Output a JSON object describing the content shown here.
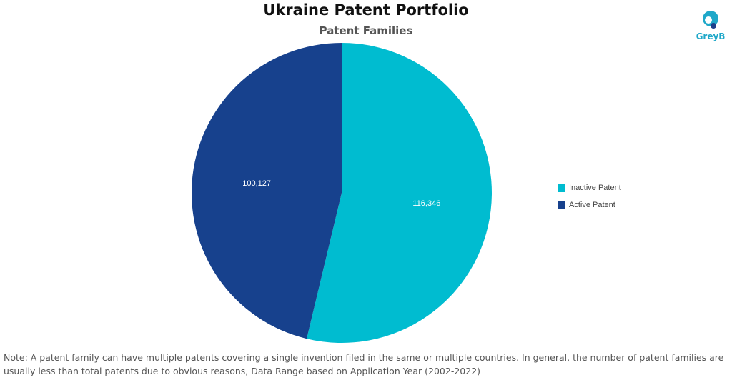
{
  "chart_data": {
    "type": "pie",
    "title": "Ukraine Patent Portfolio",
    "subtitle": "Patent Families",
    "slices": [
      {
        "label": "Inactive Patent",
        "value": 116346,
        "display": "116,346",
        "color": "#00bcd0"
      },
      {
        "label": "Active Patent",
        "value": 100127,
        "display": "100,127",
        "color": "#17418d"
      }
    ],
    "legend_position": "right"
  },
  "logo": {
    "text": "GreyB",
    "color": "#1fa8c9"
  },
  "note": "Note: A patent family can have multiple patents covering a single invention filed in the same or multiple countries. In general, the number of patent families are usually less than total patents due to obvious reasons, Data Range based on Application Year (2002-2022)"
}
